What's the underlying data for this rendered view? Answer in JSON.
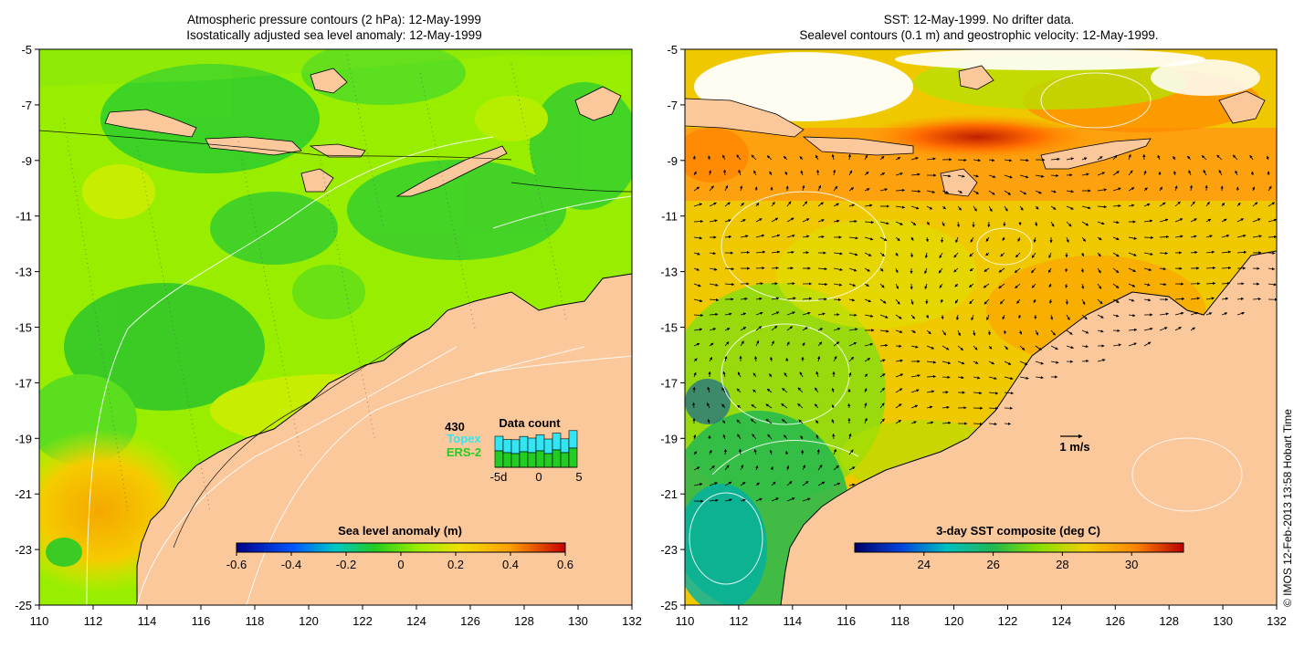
{
  "left_panel": {
    "title_line1": "Atmospheric pressure contours (2 hPa): 12-May-1999",
    "title_line2": "Isostatically adjusted sea level anomaly: 12-May-1999",
    "colorbar": {
      "title": "Sea level anomaly (m)",
      "ticks": [
        "-0.6",
        "-0.4",
        "-0.2",
        "0",
        "0.2",
        "0.4",
        "0.6"
      ],
      "range": [
        -0.6,
        0.6
      ]
    },
    "data_count": {
      "total": "430",
      "label": "Data count",
      "topex_label": "Topex",
      "ers_label": "ERS-2",
      "topex_color": "#33e5f2",
      "ers_color": "#22cc22",
      "axis_ticks": [
        "-5d",
        "0",
        "5"
      ],
      "topex": [
        1,
        1,
        1,
        1,
        1,
        1,
        1,
        1,
        1,
        1
      ],
      "ers": [
        1,
        1,
        1,
        1,
        1,
        1,
        1,
        1,
        1,
        1
      ]
    }
  },
  "right_panel": {
    "title_line1": "SST: 12-May-1999. No drifter data.",
    "title_line2": "Sealevel contours (0.1 m) and geostrophic velocity: 12-May-1999.",
    "colorbar": {
      "title": "3-day SST composite (deg C)",
      "ticks": [
        "24",
        "26",
        "28",
        "30"
      ],
      "range": [
        22,
        31.5
      ]
    },
    "scale_arrow_label": "1 m/s"
  },
  "axes": {
    "x_ticks": [
      "110",
      "112",
      "114",
      "116",
      "118",
      "120",
      "122",
      "124",
      "126",
      "128",
      "130",
      "132"
    ],
    "y_ticks": [
      "-5",
      "-7",
      "-9",
      "-11",
      "-13",
      "-15",
      "-17",
      "-19",
      "-21",
      "-23",
      "-25"
    ],
    "lon_range": [
      110,
      132
    ],
    "lat_range": [
      -25,
      -5
    ]
  },
  "colors": {
    "land": "#fbc89c",
    "sla_palette": [
      "#00008b",
      "#0055ff",
      "#00c8c8",
      "#22cc22",
      "#99ee00",
      "#f0e000",
      "#ffa000",
      "#c80000"
    ],
    "sst_palette": [
      "#000066",
      "#0044dd",
      "#00c0c0",
      "#20b850",
      "#88e000",
      "#f0d000",
      "#ff8800",
      "#bb0000"
    ]
  },
  "copyright": "© IMOS 12-Feb-2013 13:58 Hobart Time"
}
